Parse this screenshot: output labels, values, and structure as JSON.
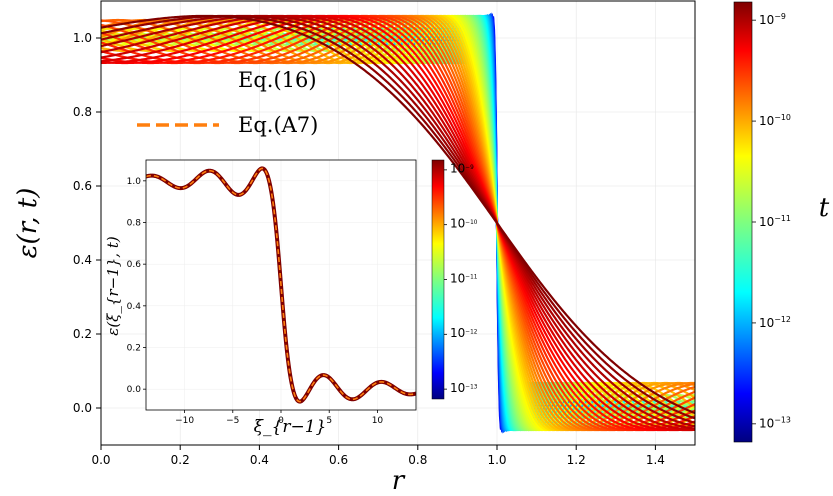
{
  "chart_data": [
    {
      "type": "line",
      "xlabel": "r",
      "ylabel": "ε(r, t)",
      "xlim": [
        0.0,
        1.5
      ],
      "ylim": [
        -0.1,
        1.1
      ],
      "xticks": [
        "0.0",
        "0.2",
        "0.4",
        "0.6",
        "0.8",
        "1.0",
        "1.2",
        "1.4"
      ],
      "yticks": [
        "0.0",
        "0.2",
        "0.4",
        "0.6",
        "0.8",
        "1.0"
      ],
      "grid": true,
      "legend_placement": "upper-left",
      "legend": [
        {
          "label": "Eq.(16)",
          "style": "colormap-gradient-line"
        },
        {
          "label": "Eq.(A7)",
          "style": "orange-dashed-line",
          "color": "#ff7f0e"
        }
      ],
      "colorbar": {
        "label": "t",
        "scale": "log",
        "range": [
          1e-13,
          1e-09
        ],
        "colormap": "jet",
        "ticks": [
          {
            "value": -13,
            "text": "10",
            "exp": "−13"
          },
          {
            "value": -12,
            "text": "10",
            "exp": "−12"
          },
          {
            "value": -11,
            "text": "10",
            "exp": "−11"
          },
          {
            "value": -10,
            "text": "10",
            "exp": "−10"
          },
          {
            "value": -9,
            "text": "10",
            "exp": "−9"
          }
        ]
      },
      "curve_family": {
        "description_of_shape": "step from 1 to 0 near r=1 with Gibbs-like overshoots that broaden and move outward as t increases",
        "t_values_log10": [
          -13,
          -12.5,
          -12,
          -11.5,
          -11,
          -10.5,
          -10,
          -9.5,
          -9
        ],
        "peak_upper": {
          "r": 0.89,
          "value": 1.075
        },
        "trough_lower": {
          "r": 1.1,
          "value": -0.07
        },
        "crossing_point": {
          "r": 1.0,
          "value": 0.5
        }
      }
    },
    {
      "type": "line",
      "xlabel": "ξ_{r−1}",
      "ylabel": "ε(ξ_{r−1}, t)",
      "xlim": [
        -14,
        14
      ],
      "ylim": [
        -0.1,
        1.1
      ],
      "xticks": [
        "−10",
        "−5",
        "0",
        "5",
        "10"
      ],
      "yticks": [
        "0.0",
        "0.2",
        "0.4",
        "0.6",
        "0.8",
        "1.0"
      ],
      "grid": true,
      "series": [
        {
          "name": "Eq.(16)",
          "style": "colormap-lines-collapsed"
        },
        {
          "name": "Eq.(A7)",
          "style": "orange-dashed",
          "color": "#ff7f0e"
        }
      ],
      "extrema": [
        {
          "x": -8.8,
          "y": 1.015
        },
        {
          "x": -6.0,
          "y": 0.98
        },
        {
          "x": -3.0,
          "y": 1.075
        },
        {
          "x": 0.0,
          "y": 0.5
        },
        {
          "x": 3.0,
          "y": -0.07
        },
        {
          "x": 6.0,
          "y": 0.02
        },
        {
          "x": 8.8,
          "y": -0.015
        }
      ],
      "colorbar": {
        "scale": "log",
        "range": [
          1e-13,
          1e-09
        ],
        "colormap": "jet",
        "ticks": [
          {
            "value": -13,
            "text": "10",
            "exp": "−13"
          },
          {
            "value": -12,
            "text": "10",
            "exp": "−12"
          },
          {
            "value": -11,
            "text": "10",
            "exp": "−11"
          },
          {
            "value": -10,
            "text": "10",
            "exp": "−10"
          },
          {
            "value": -9,
            "text": "10",
            "exp": "−9"
          }
        ]
      }
    }
  ]
}
